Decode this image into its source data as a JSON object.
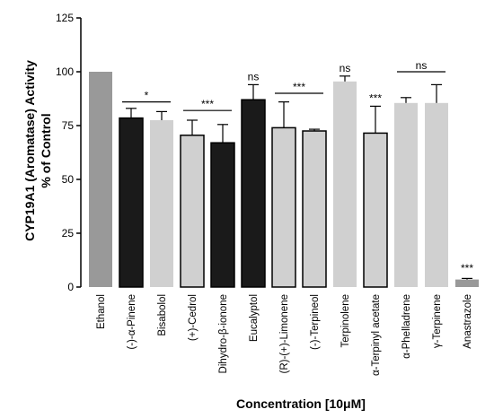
{
  "chart_data": {
    "type": "bar",
    "title": "",
    "xlabel": "Concentration [10μM]",
    "ylabel_line1": "CYP19A1 (Aromatase) Activity",
    "ylabel_line2": "% of Control",
    "ylim": [
      0,
      125
    ],
    "yticks": [
      "0",
      "25",
      "50",
      "75",
      "100",
      "125"
    ],
    "grid": false,
    "categories": [
      "Ethanol",
      "(-)-α-Pinene",
      "Bisabolol",
      "(+)-Cedrol",
      "Dihydro-β-ionone",
      "Eucalyptol",
      "(R)-(+)-Limonene",
      "(-)-Terpineol",
      "Terpinolene",
      "α-Terpinyl acetate",
      "α-Phelladrene",
      "γ-Terpinene",
      "Anastrazole"
    ],
    "values": [
      100,
      78.5,
      77.5,
      70.5,
      67,
      87,
      74,
      72.5,
      95.5,
      71.5,
      85.5,
      85.5,
      3.5
    ],
    "errors": [
      0,
      4.5,
      4,
      7,
      8.5,
      7,
      12,
      0.8,
      2.5,
      12.5,
      2.5,
      8.5,
      0.5
    ],
    "fill_colors": [
      "#999999",
      "#1a1a1a",
      "#d0d0d0",
      "#d0d0d0",
      "#1a1a1a",
      "#1a1a1a",
      "#d0d0d0",
      "#d0d0d0",
      "#d0d0d0",
      "#d0d0d0",
      "#d0d0d0",
      "#d0d0d0",
      "#999999"
    ],
    "outlined": [
      false,
      true,
      false,
      true,
      true,
      true,
      true,
      true,
      false,
      true,
      false,
      false,
      false
    ],
    "significance": [
      {
        "label": "*",
        "from": 1,
        "to": 2,
        "line": true,
        "y": 86
      },
      {
        "label": "***",
        "from": 3,
        "to": 4,
        "line": true,
        "y": 82
      },
      {
        "label": "ns",
        "from": 5,
        "to": 5,
        "line": false,
        "y": 96
      },
      {
        "label": "***",
        "from": 6,
        "to": 7,
        "line": true,
        "y": 90
      },
      {
        "label": "ns",
        "from": 8,
        "to": 8,
        "line": false,
        "y": 100
      },
      {
        "label": "***",
        "from": 9,
        "to": 9,
        "line": false,
        "y": 86
      },
      {
        "label": "ns",
        "from": 10,
        "to": 11,
        "line": true,
        "y": 100
      },
      {
        "label": "***",
        "from": 12,
        "to": 12,
        "line": false,
        "y": 7
      }
    ]
  }
}
